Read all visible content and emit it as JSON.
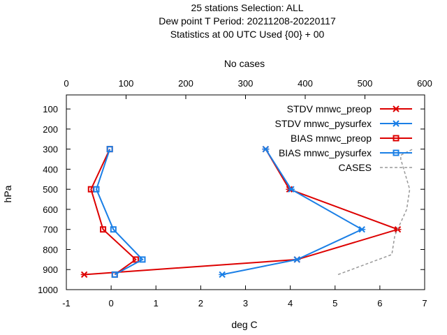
{
  "chart_data": {
    "type": "line",
    "title_lines": [
      "25 stations Selection: ALL",
      "Dew point T  Period: 20211208-20220117",
      "Statistics at 00 UTC  Used {00} + 00"
    ],
    "xlabel": "deg C",
    "ylabel": "hPa",
    "x2label": "No cases",
    "xlim": [
      -1,
      7
    ],
    "ylim": [
      1000,
      30
    ],
    "x2lim": [
      0,
      600
    ],
    "x_ticks": [
      "-1",
      "0",
      "1",
      "2",
      "3",
      "4",
      "5",
      "6",
      "7"
    ],
    "y_ticks": [
      "100",
      "200",
      "300",
      "400",
      "500",
      "600",
      "700",
      "800",
      "900",
      "1000"
    ],
    "x2_ticks": [
      "0",
      "100",
      "200",
      "300",
      "400",
      "500",
      "600"
    ],
    "legend_position": "top-right",
    "series": [
      {
        "name": "STDV mnwc_preop",
        "color": "#dd0000",
        "marker": "star",
        "dash": "solid",
        "axis": "x",
        "points": [
          [
            -0.6,
            925
          ],
          [
            4.15,
            850
          ],
          [
            6.4,
            700
          ],
          [
            3.98,
            500
          ],
          [
            3.45,
            300
          ]
        ]
      },
      {
        "name": "STDV mnwc_pysurfex",
        "color": "#1a7fe6",
        "marker": "star",
        "dash": "solid",
        "axis": "x",
        "points": [
          [
            2.48,
            925
          ],
          [
            4.15,
            850
          ],
          [
            5.6,
            700
          ],
          [
            4.02,
            500
          ],
          [
            3.45,
            300
          ]
        ]
      },
      {
        "name": "BIAS mnwc_preop",
        "color": "#dd0000",
        "marker": "square",
        "dash": "solid",
        "axis": "x",
        "points": [
          [
            0.08,
            925
          ],
          [
            0.55,
            850
          ],
          [
            -0.18,
            700
          ],
          [
            -0.45,
            500
          ],
          [
            -0.03,
            300
          ]
        ]
      },
      {
        "name": "BIAS mnwc_pysurfex",
        "color": "#1a7fe6",
        "marker": "square",
        "dash": "solid",
        "axis": "x",
        "points": [
          [
            0.08,
            925
          ],
          [
            0.7,
            850
          ],
          [
            0.05,
            700
          ],
          [
            -0.33,
            500
          ],
          [
            -0.03,
            300
          ]
        ]
      },
      {
        "name": "CASES",
        "color": "#999999",
        "marker": "none",
        "dash": "dashed",
        "axis": "x2",
        "points": [
          [
            455,
            925
          ],
          [
            545,
            825
          ],
          [
            550,
            730
          ],
          [
            570,
            600
          ],
          [
            575,
            500
          ],
          [
            560,
            350
          ],
          [
            560,
            330
          ],
          [
            580,
            300
          ]
        ]
      }
    ]
  }
}
